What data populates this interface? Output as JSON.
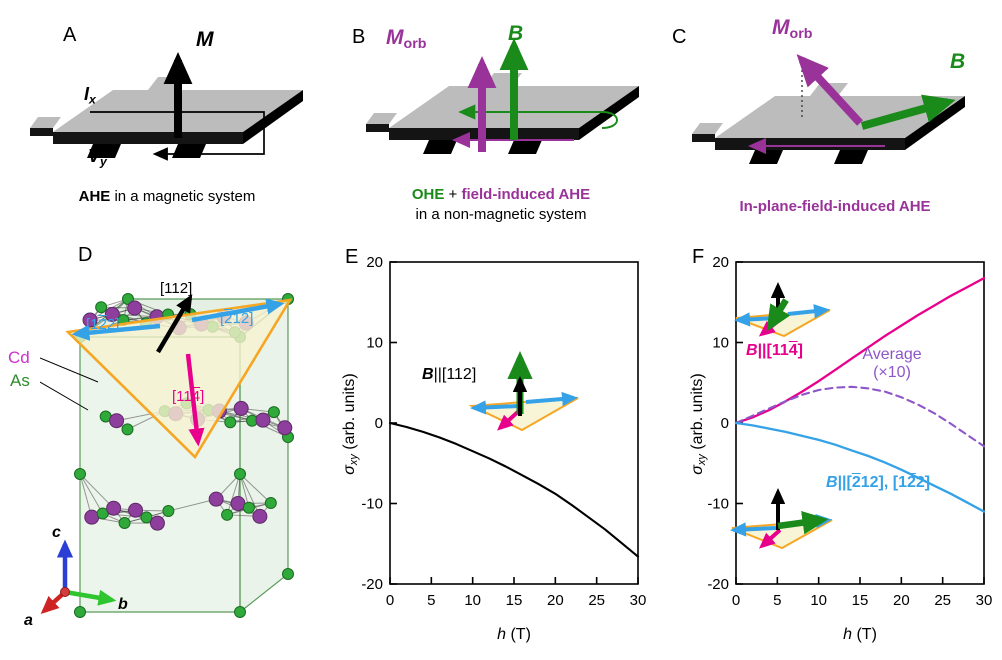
{
  "colors": {
    "green_field": "#1a8a1a",
    "purple_morb": "#993399",
    "magenta": "#e8008c",
    "blue": "#35a2e8",
    "violet_avg": "#8d56c9",
    "plate_gray": "#bcbcbc",
    "contact_black": "#141414",
    "plane_orange": "#f5a623",
    "cd_atom": "#8e3f9e",
    "as_atom": "#2fa93a",
    "cd_label": "#cc33cc",
    "as_label": "#2e8b2e",
    "axis_c_blue": "#2b3fd4",
    "axis_b_green": "#2ec52e",
    "axis_a_red": "#cf2222"
  },
  "panels": {
    "A": {
      "label": "A",
      "m_label": "M",
      "ix_main": "I",
      "ix_sub": "x",
      "vy_main": "V",
      "vy_sub": "y",
      "caption_bold": "AHE",
      "caption_rest": " in a magnetic system"
    },
    "B": {
      "label": "B",
      "morb_main": "M",
      "morb_sub": "orb",
      "b_label": "B",
      "caption_ohe": "OHE",
      "caption_plus": " + ",
      "caption_ahe": "field-induced AHE",
      "caption_line2": "in a non-magnetic system"
    },
    "C": {
      "label": "C",
      "morb_main": "M",
      "morb_sub": "orb",
      "b_label": "B",
      "caption": "In-plane-field-induced AHE"
    },
    "D": {
      "label": "D",
      "legend_cd": "Cd",
      "legend_as": "As",
      "dir_112": "[112]",
      "dir_1b22_p1": "[1",
      "dir_1b22_b": "2",
      "dir_1b22_p2": "2]",
      "dir_b212_p1": "[",
      "dir_b212_b": "2",
      "dir_b212_p2": "12]",
      "dir_11b4_p1": "[11",
      "dir_11b4_b": "4",
      "dir_11b4_p2": "]",
      "axis_a": "a",
      "axis_b": "b",
      "axis_c": "c"
    },
    "E": {
      "label": "E",
      "ylabel_sigma": "σ",
      "ylabel_sub": "xy",
      "ylabel_rest": " (arb. units)",
      "xlabel_h": "h",
      "xlabel_rest": " (T)",
      "ann_B": "B",
      "ann_rest": "||[112]"
    },
    "F": {
      "label": "F",
      "ylabel_sigma": "σ",
      "ylabel_sub": "xy",
      "ylabel_rest": " (arb. units)",
      "xlabel_h": "h",
      "xlabel_rest": " (T)",
      "mag_B": "B",
      "mag_p1": "||[11",
      "mag_b": "4",
      "mag_p2": "]",
      "avg_line1": "Average",
      "avg_line2": "(×10)",
      "blu_B": "B",
      "blu_p1": "||[",
      "blu_b1": "2",
      "blu_p2": "12], [1",
      "blu_b2": "2",
      "blu_p3": "2]"
    }
  },
  "chart_data": [
    {
      "id": "E",
      "type": "line",
      "title": "",
      "xlabel": "h (T)",
      "ylabel": "σxy (arb. units)",
      "xlim": [
        0,
        30
      ],
      "ylim": [
        -20,
        20
      ],
      "xticks": [
        0,
        5,
        10,
        15,
        20,
        25,
        30
      ],
      "yticks": [
        -20,
        -10,
        0,
        10,
        20
      ],
      "grid": false,
      "annotation": "B||[112]",
      "series": [
        {
          "name": "B||[112]",
          "color": "#000000",
          "dash": "none",
          "width": 2.1,
          "x": [
            0,
            2,
            4,
            6,
            8,
            10,
            12,
            14,
            16,
            18,
            20,
            22,
            24,
            26,
            28,
            30
          ],
          "y": [
            0,
            -0.5,
            -1.1,
            -1.8,
            -2.6,
            -3.5,
            -4.4,
            -5.4,
            -6.5,
            -7.6,
            -8.8,
            -10.2,
            -11.7,
            -13.2,
            -14.9,
            -16.6
          ]
        }
      ]
    },
    {
      "id": "F",
      "type": "line",
      "title": "",
      "xlabel": "h (T)",
      "ylabel": "σxy (arb. units)",
      "xlim": [
        0,
        30
      ],
      "ylim": [
        -20,
        20
      ],
      "xticks": [
        0,
        5,
        10,
        15,
        20,
        25,
        30
      ],
      "yticks": [
        -20,
        -10,
        0,
        10,
        20
      ],
      "grid": false,
      "series": [
        {
          "name": "B||[114̄]",
          "color": "#e8008c",
          "dash": "none",
          "width": 2.3,
          "x": [
            0,
            2,
            4,
            6,
            8,
            10,
            12,
            14,
            16,
            18,
            20,
            22,
            24,
            26,
            28,
            30
          ],
          "y": [
            0,
            0.7,
            1.6,
            2.7,
            3.9,
            5.2,
            6.6,
            8.0,
            9.4,
            10.8,
            12.1,
            13.4,
            14.6,
            15.8,
            16.9,
            18.0
          ]
        },
        {
          "name": "Average (×10)",
          "color": "#8d56c9",
          "dash": "7,5",
          "width": 2.1,
          "x": [
            0,
            2,
            4,
            6,
            8,
            10,
            12,
            14,
            16,
            18,
            20,
            22,
            24,
            26,
            28,
            30
          ],
          "y": [
            0,
            0.9,
            1.8,
            2.7,
            3.5,
            4.1,
            4.4,
            4.5,
            4.3,
            3.9,
            3.2,
            2.3,
            1.2,
            -0.1,
            -1.5,
            -2.9
          ]
        },
        {
          "name": "B||[2̄12], [12̄2]",
          "color": "#35a2e8",
          "dash": "none",
          "width": 2.3,
          "x": [
            0,
            2,
            4,
            6,
            8,
            10,
            12,
            14,
            16,
            18,
            20,
            22,
            24,
            26,
            28,
            30
          ],
          "y": [
            0,
            -0.3,
            -0.7,
            -1.1,
            -1.6,
            -2.1,
            -2.7,
            -3.4,
            -4.1,
            -4.9,
            -5.8,
            -6.8,
            -7.8,
            -8.8,
            -9.9,
            -11.0
          ]
        }
      ]
    }
  ]
}
